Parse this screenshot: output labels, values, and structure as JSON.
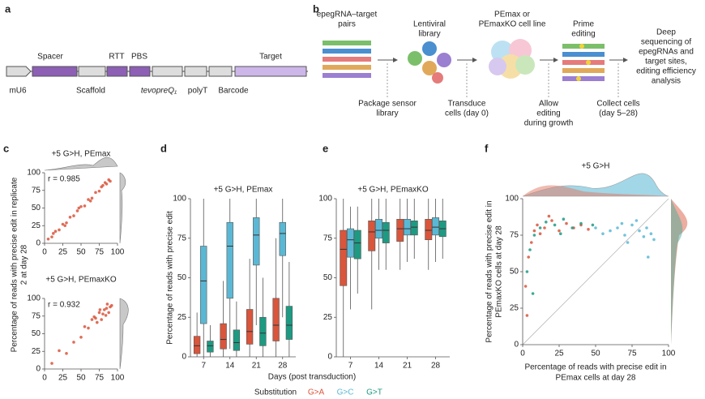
{
  "panel_labels": [
    "a",
    "b",
    "c",
    "d",
    "e",
    "f"
  ],
  "diagram_a": {
    "elements": [
      "mU6",
      "Spacer",
      "Scaffold",
      "RTT",
      "PBS",
      "tevopreQ₁",
      "polyT",
      "Barcode",
      "Target"
    ]
  },
  "diagram_b": {
    "steps": [
      "epegRNA–target",
      "pairs",
      "Lentiviral",
      "library",
      "PEmax or",
      "PEmaxKO cell line",
      "Prime",
      "editing",
      "Deep",
      "sequencing of",
      "epegRNAs and",
      "target sites,",
      "editing efficiency",
      "analysis"
    ],
    "annotations": [
      "Package sensor",
      "library",
      "Transduce",
      "cells (day 0)",
      "Allow",
      "editing",
      "during growth",
      "Collect cells",
      "(day 5–28)"
    ]
  },
  "shared": {
    "x_label": "Days (post transduction)",
    "legend_title": "Substitution"
  },
  "chart_data": [
    {
      "type": "scatter",
      "title": "+5 G>H, PEmax",
      "annotation": "r = 0.985",
      "y_label": [
        "Percentage of reads with precise edit in replicate",
        "2 at day 28"
      ],
      "xlim": [
        0,
        100
      ],
      "xticks": [
        0,
        25,
        50,
        75,
        100
      ],
      "ylim": [
        0,
        100
      ],
      "yticks": [
        0,
        25,
        50,
        75,
        100
      ],
      "series": [
        {
          "color": "#d9553b",
          "x": [
            5,
            10,
            15,
            20,
            25,
            30,
            35,
            40,
            45,
            50,
            55,
            60,
            65,
            70,
            75,
            80,
            85,
            88,
            90,
            12,
            28,
            47,
            63,
            78,
            83
          ],
          "values": [
            6,
            9,
            17,
            19,
            27,
            29,
            37,
            39,
            46,
            52,
            53,
            62,
            64,
            72,
            74,
            82,
            84,
            90,
            88,
            14,
            25,
            50,
            60,
            80,
            86
          ]
        }
      ]
    },
    {
      "type": "scatter",
      "title": "+5 G>H, PEmaxKO",
      "annotation": "r = 0.932",
      "xlim": [
        0,
        100
      ],
      "xticks": [
        0,
        25,
        50,
        75,
        100
      ],
      "ylim": [
        0,
        100
      ],
      "yticks": [
        0,
        25,
        50,
        75,
        100
      ],
      "series": [
        {
          "color": "#d9553b",
          "x": [
            70,
            75,
            80,
            85,
            90,
            78,
            82,
            88,
            72,
            65,
            60,
            92,
            84,
            76,
            68,
            50,
            40,
            30,
            20,
            10,
            55,
            86
          ],
          "values": [
            72,
            80,
            78,
            86,
            88,
            70,
            84,
            80,
            66,
            70,
            58,
            90,
            76,
            84,
            74,
            45,
            38,
            22,
            26,
            8,
            60,
            92
          ]
        }
      ]
    },
    {
      "type": "box",
      "title": "+5 G>H, PEmax",
      "y_label": "Percentage of reads with precise edit",
      "categories": [
        "7",
        "14",
        "21",
        "28"
      ],
      "ylim": [
        0,
        100
      ],
      "yticks": [
        0,
        25,
        50,
        75,
        100
      ],
      "series": [
        {
          "name": "G>A",
          "color": "#d9553b",
          "low": [
            0,
            0,
            0,
            0
          ],
          "q1": [
            2,
            5,
            8,
            10
          ],
          "median": [
            7,
            11,
            16,
            20
          ],
          "q3": [
            13,
            21,
            30,
            37
          ],
          "high": [
            28,
            48,
            62,
            75
          ]
        },
        {
          "name": "G>C",
          "color": "#5bb8d4",
          "low": [
            0,
            5,
            20,
            25
          ],
          "q1": [
            21,
            37,
            58,
            64
          ],
          "median": [
            48,
            70,
            77,
            78
          ],
          "q3": [
            70,
            85,
            88,
            85
          ],
          "high": [
            100,
            100,
            100,
            100
          ]
        },
        {
          "name": "G>T",
          "color": "#1e9a82",
          "low": [
            0,
            0,
            0,
            0
          ],
          "q1": [
            3,
            4,
            7,
            11
          ],
          "median": [
            7,
            9,
            15,
            20
          ],
          "q3": [
            10,
            17,
            25,
            32
          ],
          "high": [
            20,
            35,
            50,
            60
          ]
        }
      ]
    },
    {
      "type": "box",
      "title": "+5 G>H, PEmaxKO",
      "categories": [
        "7",
        "14",
        "21",
        "28"
      ],
      "ylim": [
        0,
        100
      ],
      "yticks": [
        0,
        25,
        50,
        75,
        100
      ],
      "series": [
        {
          "name": "G>A",
          "color": "#d9553b",
          "low": [
            0,
            30,
            55,
            55
          ],
          "q1": [
            45,
            67,
            73,
            74
          ],
          "median": [
            68,
            79,
            81,
            80
          ],
          "q3": [
            80,
            86,
            87,
            87
          ],
          "high": [
            100,
            100,
            100,
            100
          ]
        },
        {
          "name": "G>C",
          "color": "#5bb8d4",
          "low": [
            30,
            55,
            60,
            60
          ],
          "q1": [
            63,
            75,
            77,
            77
          ],
          "median": [
            74,
            80,
            81,
            82
          ],
          "q3": [
            81,
            87,
            87,
            88
          ],
          "high": [
            95,
            100,
            100,
            100
          ]
        },
        {
          "name": "G>T",
          "color": "#1e9a82",
          "low": [
            40,
            55,
            62,
            62
          ],
          "q1": [
            62,
            72,
            77,
            76
          ],
          "median": [
            72,
            80,
            82,
            81
          ],
          "q3": [
            80,
            85,
            86,
            86
          ],
          "high": [
            95,
            100,
            100,
            100
          ]
        }
      ]
    },
    {
      "type": "scatter",
      "title": "+5 G>H",
      "x_label": [
        "Percentage of reads with precise edit in",
        "PEmax cells at day 28"
      ],
      "y_label": [
        "Percentage of reads with precise edit in",
        "PEmaxKO cells at day 28"
      ],
      "xlim": [
        0,
        100
      ],
      "xticks": [
        0,
        25,
        50,
        75,
        100
      ],
      "ylim": [
        0,
        100
      ],
      "yticks": [
        0,
        25,
        50,
        75,
        100
      ],
      "series": [
        {
          "name": "G>A",
          "color": "#d9553b",
          "x": [
            2,
            4,
            6,
            8,
            10,
            15,
            20,
            25,
            30,
            35,
            40,
            3,
            12,
            18,
            45
          ],
          "values": [
            40,
            60,
            70,
            78,
            82,
            80,
            85,
            78,
            83,
            80,
            82,
            20,
            76,
            88,
            79
          ]
        },
        {
          "name": "G>C",
          "color": "#5bb8d4",
          "x": [
            60,
            65,
            70,
            75,
            80,
            85,
            88,
            90,
            72,
            78,
            83,
            86,
            50,
            55,
            68
          ],
          "values": [
            78,
            80,
            75,
            82,
            78,
            80,
            76,
            72,
            70,
            85,
            74,
            60,
            80,
            76,
            83
          ]
        },
        {
          "name": "G>T",
          "color": "#1e9a82",
          "x": [
            3,
            5,
            8,
            12,
            16,
            22,
            28,
            34,
            40,
            48,
            7,
            26
          ],
          "values": [
            50,
            65,
            75,
            80,
            84,
            82,
            86,
            80,
            83,
            82,
            35,
            76
          ]
        }
      ]
    }
  ]
}
